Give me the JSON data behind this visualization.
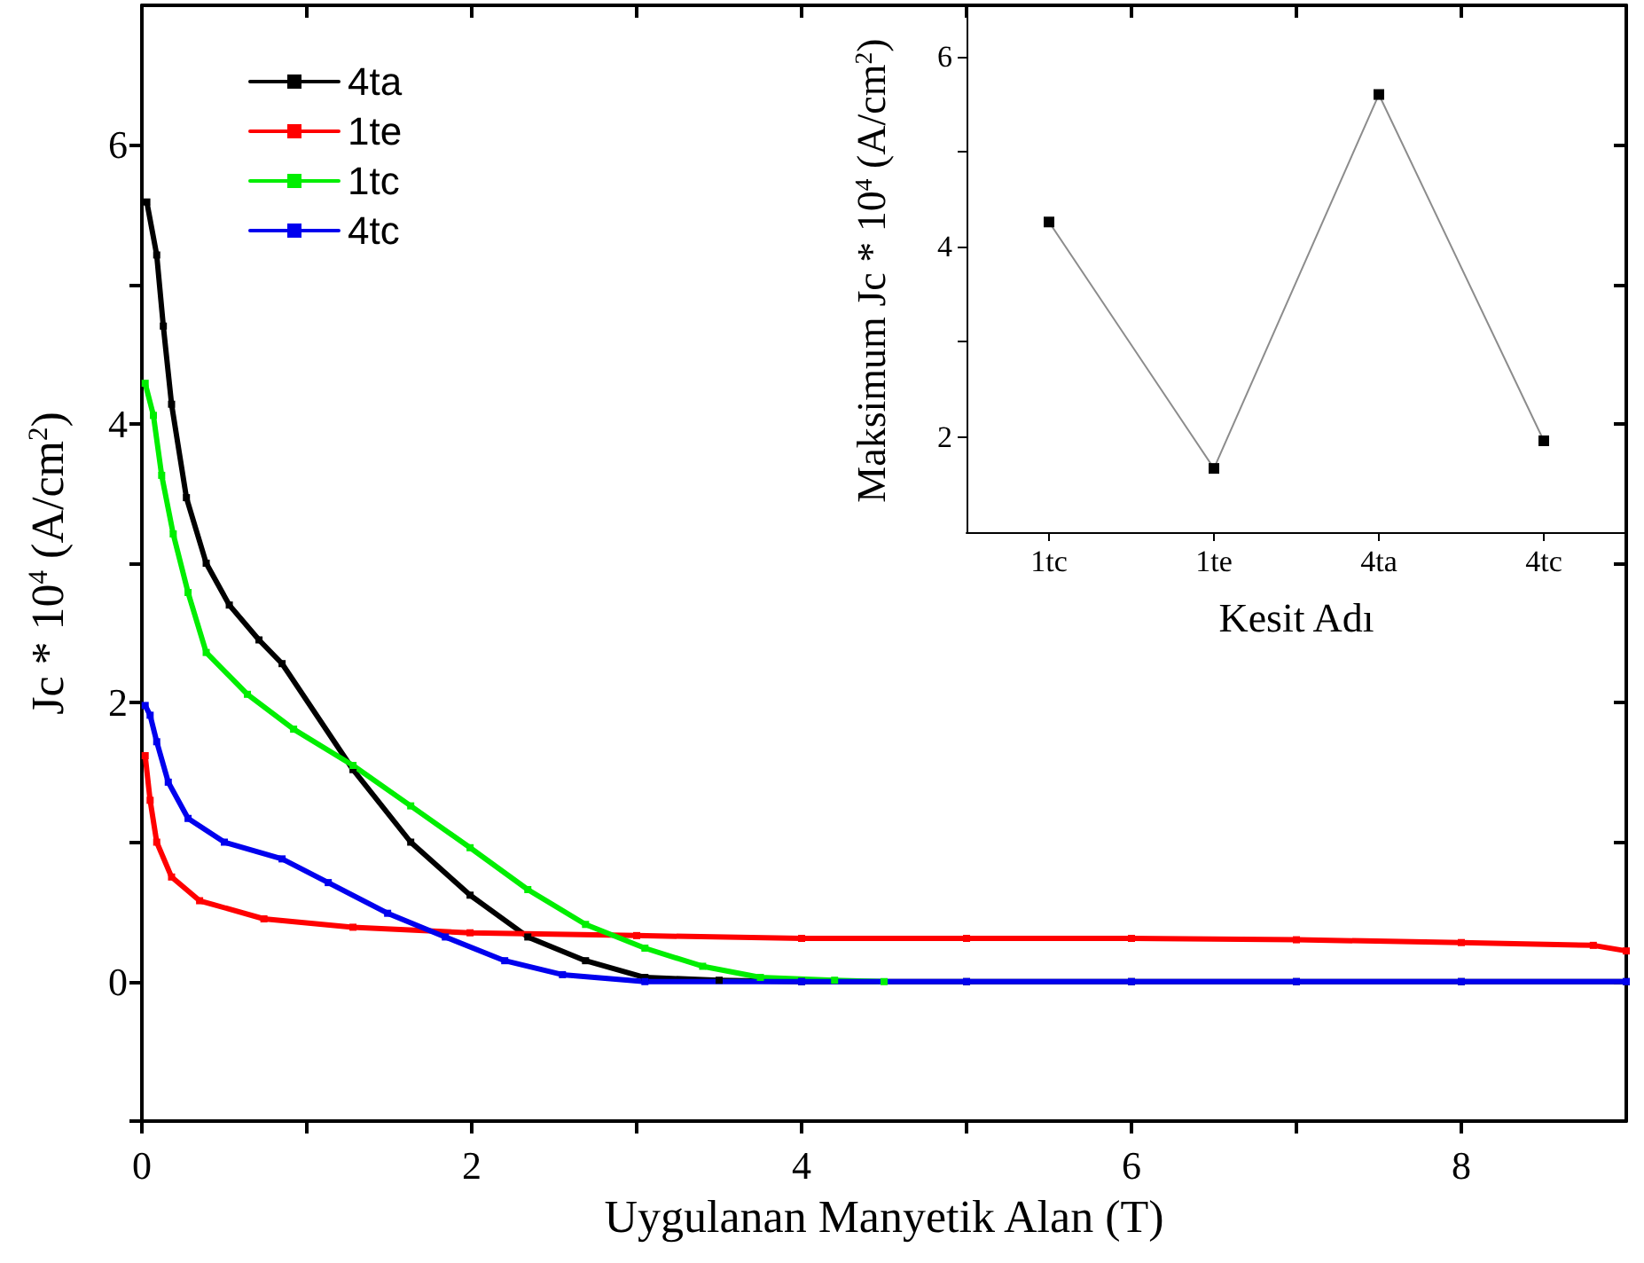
{
  "chart_data": [
    {
      "type": "line",
      "xlabel": "Uygulanan Manyetik Alan (T)",
      "ylabel": "Jc * 10$^{4}$ (A/cm$^{2}$)",
      "xlim": [
        0,
        9
      ],
      "xticks": [
        0,
        {
          "value": 1,
          "label": null
        },
        2,
        {
          "value": 3,
          "label": null
        },
        4,
        {
          "value": 5,
          "label": null
        },
        6,
        {
          "value": 7,
          "label": null
        },
        8
      ],
      "ylim": [
        -1,
        7
      ],
      "yticks": [
        {
          "value": -1,
          "label": null
        },
        0,
        {
          "value": 1,
          "label": null
        },
        2,
        {
          "value": 3,
          "label": null
        },
        4,
        {
          "value": 5,
          "label": null
        },
        6
      ],
      "grid": false,
      "legend": "top left",
      "marker": "square",
      "line_style": "solid",
      "series": [
        {
          "name": "4ta",
          "color": "#000000",
          "x": [
            0.03,
            0.09,
            0.13,
            0.18,
            0.27,
            0.39,
            0.53,
            0.71,
            0.85,
            1.28,
            1.63,
            1.99,
            2.34,
            2.69,
            3.05,
            3.5,
            4,
            5,
            6,
            7,
            8,
            9
          ],
          "values": [
            5.59,
            5.21,
            4.7,
            4.14,
            3.47,
            3.0,
            2.7,
            2.45,
            2.28,
            1.52,
            1.0,
            0.62,
            0.32,
            0.15,
            0.03,
            0.01,
            0,
            0,
            0,
            0,
            0,
            0
          ]
        },
        {
          "name": "1te",
          "color": "#ff0000",
          "x": [
            0.02,
            0.05,
            0.09,
            0.18,
            0.35,
            0.74,
            1.28,
            1.99,
            3,
            4,
            5,
            6,
            7,
            8,
            8.8,
            9
          ],
          "values": [
            1.62,
            1.3,
            1.0,
            0.75,
            0.58,
            0.45,
            0.39,
            0.35,
            0.33,
            0.31,
            0.31,
            0.31,
            0.3,
            0.28,
            0.26,
            0.22
          ]
        },
        {
          "name": "1tc",
          "color": "#00ee00",
          "x": [
            0.02,
            0.07,
            0.12,
            0.19,
            0.28,
            0.39,
            0.64,
            0.92,
            1.28,
            1.63,
            1.99,
            2.34,
            2.69,
            3.05,
            3.4,
            3.75,
            4.2,
            4.5
          ],
          "values": [
            4.29,
            4.06,
            3.63,
            3.21,
            2.79,
            2.36,
            2.06,
            1.81,
            1.55,
            1.26,
            0.96,
            0.66,
            0.41,
            0.24,
            0.11,
            0.03,
            0.01,
            0
          ]
        },
        {
          "name": "4tc",
          "color": "#0000ee",
          "x": [
            0.02,
            0.05,
            0.09,
            0.16,
            0.28,
            0.5,
            0.85,
            1.13,
            1.49,
            1.84,
            2.2,
            2.55,
            3.05,
            4,
            5,
            6,
            7,
            8,
            9
          ],
          "values": [
            1.98,
            1.91,
            1.72,
            1.43,
            1.17,
            1.0,
            0.88,
            0.71,
            0.49,
            0.32,
            0.15,
            0.05,
            0,
            0,
            0,
            0,
            0,
            0,
            0
          ]
        }
      ]
    },
    {
      "type": "line",
      "xlabel": "Kesit Adı",
      "ylabel": "Maksimum Jc * 10$^{4}$ (A/cm$^{2}$)",
      "categories": [
        "1tc",
        "1te",
        "4ta",
        "4tc"
      ],
      "ylim": [
        1,
        6.5
      ],
      "yticks": [
        2,
        {
          "value": 3,
          "label": null
        },
        4,
        {
          "value": 5,
          "label": null
        },
        6
      ],
      "grid": false,
      "marker": "square",
      "line_style": "solid",
      "series": [
        {
          "color": "#000000",
          "values": [
            4.26,
            1.67,
            5.6,
            1.96
          ]
        }
      ]
    }
  ]
}
